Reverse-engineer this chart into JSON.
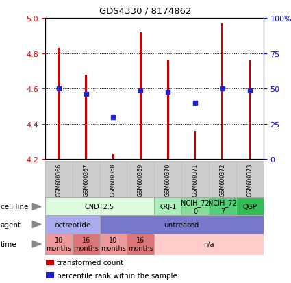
{
  "title": "GDS4330 / 8174862",
  "samples": [
    "GSM600366",
    "GSM600367",
    "GSM600368",
    "GSM600369",
    "GSM600370",
    "GSM600371",
    "GSM600372",
    "GSM600373"
  ],
  "bar_values": [
    4.83,
    4.68,
    4.23,
    4.92,
    4.76,
    4.36,
    4.97,
    4.76
  ],
  "bar_bottom": 4.2,
  "percentile_values": [
    4.6,
    4.57,
    4.44,
    4.59,
    4.58,
    4.52,
    4.6,
    4.59
  ],
  "ylim": [
    4.2,
    5.0
  ],
  "yticks_left": [
    4.2,
    4.4,
    4.6,
    4.8,
    5.0
  ],
  "yticks_right_vals": [
    0,
    25,
    50,
    75,
    100
  ],
  "bar_color": "#cc0000",
  "dot_color": "#2222cc",
  "cell_line_groups": [
    {
      "label": "CNDT2.5",
      "start": 0,
      "end": 4,
      "color": "#ddfbdd"
    },
    {
      "label": "KRJ-1",
      "start": 4,
      "end": 5,
      "color": "#aaeebb"
    },
    {
      "label": "NCIH_72\n0",
      "start": 5,
      "end": 6,
      "color": "#88dd99"
    },
    {
      "label": "NCIH_72\n7",
      "start": 6,
      "end": 7,
      "color": "#55cc77"
    },
    {
      "label": "QGP",
      "start": 7,
      "end": 8,
      "color": "#33bb55"
    }
  ],
  "agent_groups": [
    {
      "label": "octreotide",
      "start": 0,
      "end": 2,
      "color": "#aaaaee"
    },
    {
      "label": "untreated",
      "start": 2,
      "end": 8,
      "color": "#7777cc"
    }
  ],
  "time_groups": [
    {
      "label": "10\nmonths",
      "start": 0,
      "end": 1,
      "color": "#ee9999"
    },
    {
      "label": "16\nmonths",
      "start": 1,
      "end": 2,
      "color": "#dd7777"
    },
    {
      "label": "10\nmonths",
      "start": 2,
      "end": 3,
      "color": "#ee9999"
    },
    {
      "label": "16\nmonths",
      "start": 3,
      "end": 4,
      "color": "#dd7777"
    },
    {
      "label": "n/a",
      "start": 4,
      "end": 8,
      "color": "#ffcccc"
    }
  ],
  "legend_items": [
    {
      "color": "#cc0000",
      "label": "transformed count"
    },
    {
      "color": "#2222cc",
      "label": "percentile rank within the sample"
    }
  ],
  "sample_bg": "#cccccc"
}
